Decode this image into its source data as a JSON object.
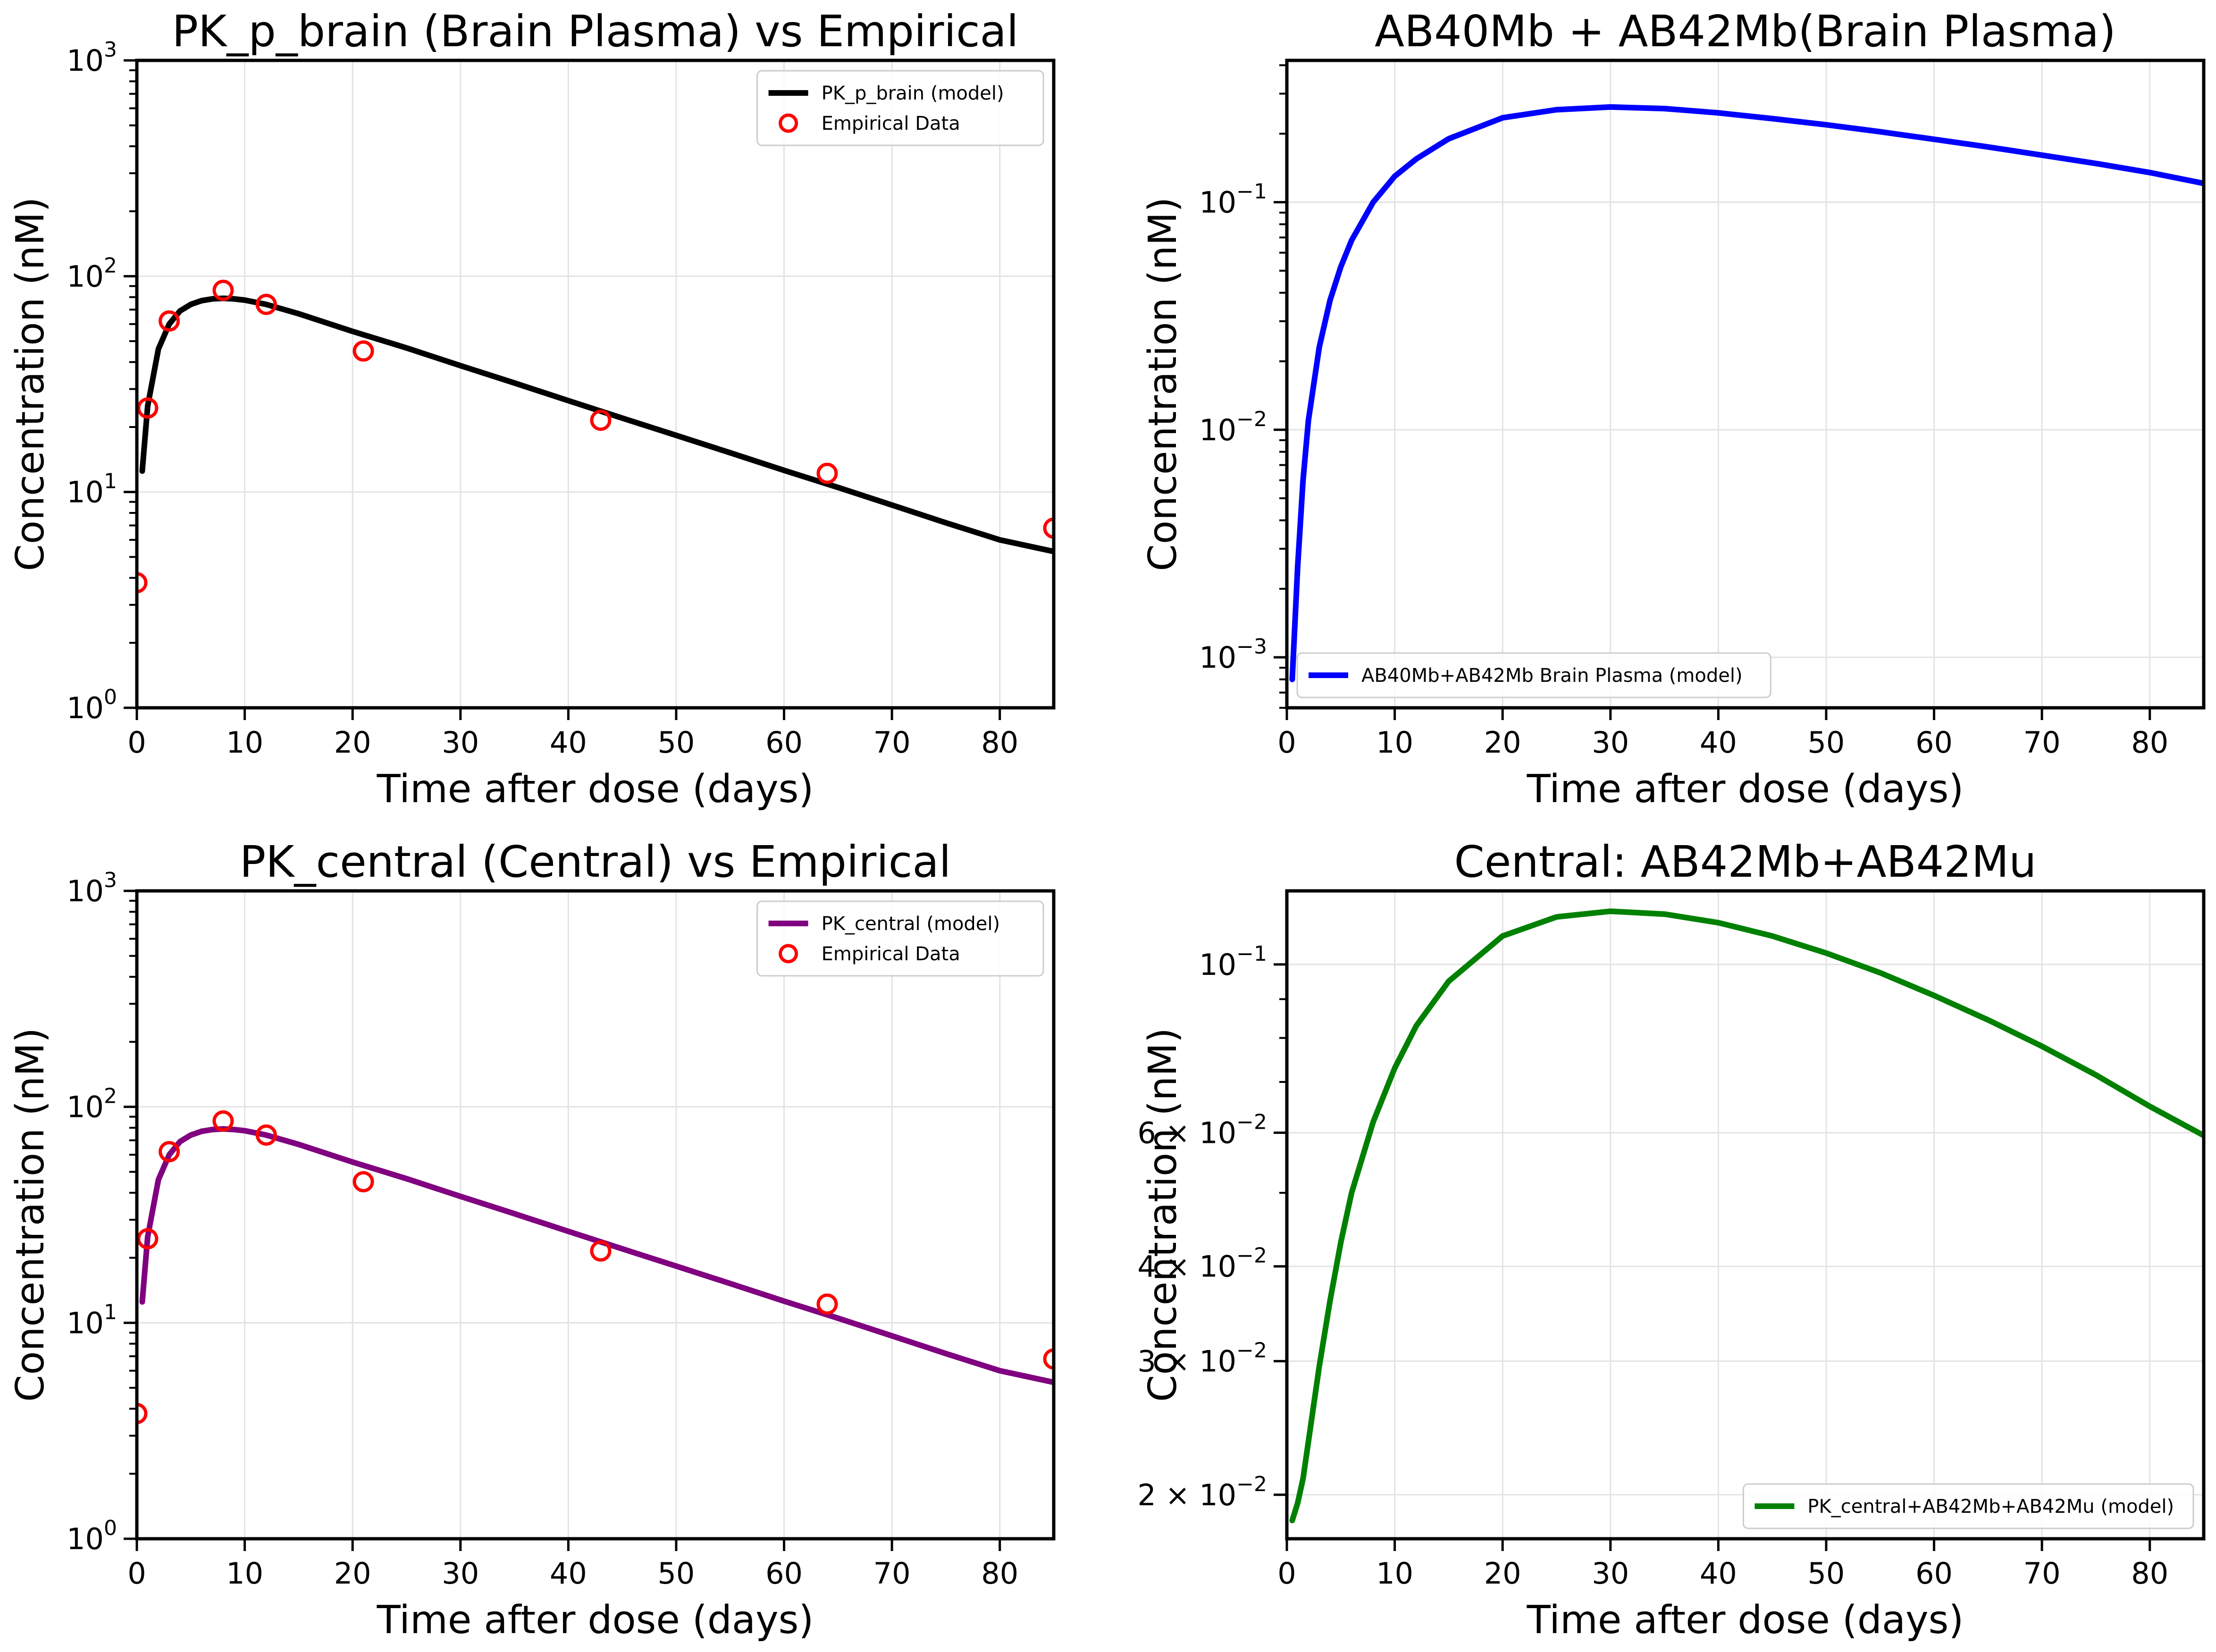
{
  "chart_data": [
    {
      "id": "p1",
      "type": "line",
      "title": "PK_p_brain (Brain Plasma) vs Empirical",
      "xlabel": "Time after dose (days)",
      "ylabel": "Concentration (nM)",
      "xlim": [
        0,
        85
      ],
      "ylim": [
        1,
        1000
      ],
      "yscale": "log",
      "xticks": [
        0,
        10,
        20,
        30,
        40,
        50,
        60,
        70,
        80
      ],
      "yticks": [
        {
          "value": 1,
          "base": "10",
          "exp": "0"
        },
        {
          "value": 10,
          "base": "10",
          "exp": "1"
        },
        {
          "value": 100,
          "base": "10",
          "exp": "2"
        },
        {
          "value": 1000,
          "base": "10",
          "exp": "3"
        }
      ],
      "grid": true,
      "legend_position": "upper right",
      "series": [
        {
          "name": "PK_p_brain (model)",
          "kind": "line",
          "color": "#000000",
          "x": [
            0.5,
            1,
            2,
            3,
            4,
            5,
            6,
            7,
            8,
            9,
            10,
            12,
            15,
            20,
            25,
            30,
            35,
            40,
            45,
            50,
            55,
            60,
            65,
            70,
            75,
            80,
            85
          ],
          "y": [
            12.5,
            25,
            46,
            60,
            69,
            74,
            77,
            78.5,
            79,
            78.5,
            77.5,
            74,
            67,
            55.5,
            46.5,
            38.5,
            32,
            26.5,
            22,
            18.3,
            15.2,
            12.6,
            10.5,
            8.7,
            7.2,
            6.0,
            5.3
          ]
        },
        {
          "name": "Empirical Data",
          "kind": "scatter",
          "color": "#ff0000",
          "x": [
            0,
            1,
            3,
            8,
            12,
            21,
            43,
            64,
            85
          ],
          "y": [
            3.8,
            24.5,
            62,
            86,
            74,
            45,
            21.5,
            12.2,
            6.8
          ]
        }
      ]
    },
    {
      "id": "p2",
      "type": "line",
      "title": "AB40Mb + AB42Mb(Brain Plasma)",
      "xlabel": "Time after dose (days)",
      "ylabel": "Concentration (nM)",
      "xlim": [
        0,
        85
      ],
      "ylim": [
        0.0006,
        0.42
      ],
      "yscale": "log",
      "xticks": [
        0,
        10,
        20,
        30,
        40,
        50,
        60,
        70,
        80
      ],
      "yticks": [
        {
          "value": 0.001,
          "base": "10",
          "exp": "−3"
        },
        {
          "value": 0.01,
          "base": "10",
          "exp": "−2"
        },
        {
          "value": 0.1,
          "base": "10",
          "exp": "−1"
        }
      ],
      "grid": true,
      "legend_position": "lower left",
      "series": [
        {
          "name": "AB40Mb+AB42Mb Brain Plasma (model)",
          "kind": "line",
          "color": "#0000ff",
          "x": [
            0.5,
            1,
            1.5,
            2,
            3,
            4,
            5,
            6,
            8,
            10,
            12,
            15,
            20,
            25,
            30,
            35,
            40,
            45,
            50,
            55,
            60,
            65,
            70,
            75,
            80,
            85
          ],
          "y": [
            0.0008,
            0.0025,
            0.006,
            0.011,
            0.023,
            0.037,
            0.052,
            0.068,
            0.1,
            0.13,
            0.155,
            0.19,
            0.235,
            0.255,
            0.262,
            0.258,
            0.247,
            0.233,
            0.219,
            0.204,
            0.189,
            0.175,
            0.161,
            0.148,
            0.135,
            0.121
          ]
        }
      ]
    },
    {
      "id": "p3",
      "type": "line",
      "title": "PK_central (Central) vs Empirical",
      "xlabel": "Time after dose (days)",
      "ylabel": "Concentration (nM)",
      "xlim": [
        0,
        85
      ],
      "ylim": [
        1,
        1000
      ],
      "yscale": "log",
      "xticks": [
        0,
        10,
        20,
        30,
        40,
        50,
        60,
        70,
        80
      ],
      "yticks": [
        {
          "value": 1,
          "base": "10",
          "exp": "0"
        },
        {
          "value": 10,
          "base": "10",
          "exp": "1"
        },
        {
          "value": 100,
          "base": "10",
          "exp": "2"
        },
        {
          "value": 1000,
          "base": "10",
          "exp": "3"
        }
      ],
      "grid": true,
      "legend_position": "upper right",
      "series": [
        {
          "name": "PK_central (model)",
          "kind": "line",
          "color": "#800080",
          "x": [
            0.5,
            1,
            2,
            3,
            4,
            5,
            6,
            7,
            8,
            9,
            10,
            12,
            15,
            20,
            25,
            30,
            35,
            40,
            45,
            50,
            55,
            60,
            65,
            70,
            75,
            80,
            85
          ],
          "y": [
            12.5,
            25,
            46,
            60,
            69,
            74,
            77,
            78.5,
            79,
            78.5,
            77.5,
            74,
            67,
            55.5,
            46.5,
            38.5,
            32,
            26.5,
            22,
            18.3,
            15.2,
            12.6,
            10.5,
            8.7,
            7.2,
            6.0,
            5.3
          ]
        },
        {
          "name": "Empirical Data",
          "kind": "scatter",
          "color": "#ff0000",
          "x": [
            0,
            1,
            3,
            8,
            12,
            21,
            43,
            64,
            85
          ],
          "y": [
            3.8,
            24.5,
            62,
            86,
            74,
            45,
            21.5,
            12.2,
            6.8
          ]
        }
      ]
    },
    {
      "id": "p4",
      "type": "line",
      "title": "Central: AB42Mb+AB42Mu",
      "xlabel": "Time after dose (days)",
      "ylabel": "Concentration (nM)",
      "xlim": [
        0,
        85
      ],
      "ylim": [
        0.0175,
        0.125
      ],
      "yscale": "log",
      "xticks": [
        0,
        10,
        20,
        30,
        40,
        50,
        60,
        70,
        80
      ],
      "yticks": [
        {
          "value": 0.02,
          "base": "2 × 10",
          "exp": "−2"
        },
        {
          "value": 0.03,
          "base": "3 × 10",
          "exp": "−2"
        },
        {
          "value": 0.04,
          "base": "4 × 10",
          "exp": "−2"
        },
        {
          "value": 0.06,
          "base": "6 × 10",
          "exp": "−2"
        },
        {
          "value": 0.1,
          "base": "10",
          "exp": "−1"
        }
      ],
      "grid": true,
      "legend_position": "lower right",
      "series": [
        {
          "name": "PK_central+AB42Mb+AB42Mu (model)",
          "kind": "line",
          "color": "#008000",
          "x": [
            0.5,
            1,
            1.5,
            2,
            3,
            4,
            5,
            6,
            8,
            10,
            12,
            15,
            20,
            25,
            30,
            35,
            40,
            45,
            50,
            55,
            60,
            65,
            70,
            75,
            80,
            85
          ],
          "y": [
            0.0185,
            0.0195,
            0.021,
            0.0235,
            0.0295,
            0.036,
            0.043,
            0.05,
            0.062,
            0.073,
            0.083,
            0.095,
            0.109,
            0.1155,
            0.1175,
            0.1165,
            0.1135,
            0.109,
            0.1035,
            0.0975,
            0.091,
            0.0845,
            0.078,
            0.0715,
            0.065,
            0.0595
          ]
        }
      ]
    }
  ]
}
